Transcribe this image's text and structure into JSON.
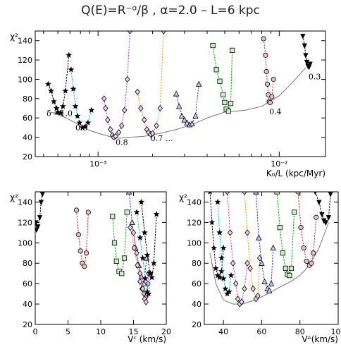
{
  "figure_title": "Q(E)=R⁻ᵅ/β   ,  α=2.0  –  L=6 kpc",
  "colors": {
    "frame": "#000000",
    "envelope": "#777777",
    "d1.0": "#000000",
    "d0.9": "#00c8c8",
    "d0.8": "#d040d0",
    "d0.7": "#ff9a00",
    "d0.6": "#3a3aff",
    "d0.5": "#00b000",
    "d0.4": "#e03030",
    "d0.3": "#000000"
  },
  "chart_data": [
    {
      "id": "top",
      "type": "line",
      "xscale": "log",
      "xlabel": "K₀/L (kpc/Myr)",
      "ylabel": "χ²",
      "xlim": [
        0.00045,
        0.018
      ],
      "ylim": [
        20,
        150
      ],
      "xticks": [
        {
          "v": 0.001,
          "label": "10⁻³"
        },
        {
          "v": 0.01,
          "label": "10⁻²"
        }
      ],
      "yticks": [
        20,
        40,
        60,
        80,
        100,
        120,
        140
      ],
      "annotations": [
        {
          "text": "δ =1.0",
          "x": 0.00052,
          "y": 62
        },
        {
          "text": "0.9",
          "x": 0.00075,
          "y": 47
        },
        {
          "text": "0.8",
          "x": 0.00125,
          "y": 32
        },
        {
          "text": "0.7 …",
          "x": 0.00195,
          "y": 36
        },
        {
          "text": "0.4",
          "x": 0.0088,
          "y": 64
        },
        {
          "text": "0.3",
          "x": 0.0145,
          "y": 100
        }
      ],
      "envelope": {
        "x": [
          0.00055,
          0.0006,
          0.0007,
          0.0008,
          0.0009,
          0.00105,
          0.0012,
          0.0013,
          0.0015,
          0.0018,
          0.0022,
          0.0027,
          0.0033,
          0.004,
          0.005,
          0.0065,
          0.008,
          0.01,
          0.012,
          0.014
        ],
        "y": [
          66,
          64,
          58,
          52,
          47,
          43,
          40,
          39,
          40,
          41,
          44,
          48,
          53,
          60,
          66,
          68,
          72,
          83,
          98,
          112
        ]
      },
      "series": [
        {
          "name": "δ =1.0",
          "key": "d1.0",
          "marker": "star",
          "x": [
            0.00053,
            0.00055,
            0.00057,
            0.00059,
            0.0006,
            0.00062,
            0.00064,
            0.00066,
            0.00069
          ],
          "y": [
            95,
            88,
            77,
            70,
            66,
            65,
            72,
            88,
            125
          ]
        },
        {
          "name": "0.9",
          "key": "d0.9",
          "marker": "star",
          "x": [
            0.00071,
            0.00073,
            0.00075,
            0.00077,
            0.00079,
            0.00082,
            0.00085,
            0.00088,
            0.00092
          ],
          "y": [
            110,
            90,
            72,
            62,
            55,
            50,
            51,
            55,
            68
          ]
        },
        {
          "name": "0.8",
          "key": "d0.8",
          "marker": "diamond",
          "x": [
            0.00108,
            0.0011,
            0.00113,
            0.00117,
            0.0012,
            0.00122,
            0.00125,
            0.0013,
            0.00135,
            0.0014,
            0.00145,
            0.0015
          ],
          "y": [
            80,
            70,
            58,
            48,
            42,
            40,
            41,
            45,
            52,
            68,
            100,
            150
          ]
        },
        {
          "name": "0.7",
          "key": "d0.7",
          "marker": "diamond",
          "x": [
            0.00165,
            0.00172,
            0.0018,
            0.00186,
            0.0019,
            0.00195,
            0.002,
            0.0021,
            0.0022,
            0.0023
          ],
          "y": [
            87,
            70,
            58,
            48,
            45,
            43,
            44,
            52,
            70,
            150
          ]
        },
        {
          "name": "0.6",
          "key": "d0.6",
          "marker": "triangle",
          "x": [
            0.0027,
            0.0028,
            0.0029,
            0.003,
            0.0031,
            0.0032,
            0.0033,
            0.00345,
            0.0036
          ],
          "y": [
            85,
            72,
            62,
            58,
            55,
            53,
            54,
            62,
            95
          ]
        },
        {
          "name": "0.5",
          "key": "d0.5",
          "marker": "square",
          "x": [
            0.0043,
            0.0045,
            0.0047,
            0.0049,
            0.005,
            0.0051,
            0.00525,
            0.0054,
            0.0055
          ],
          "y": [
            135,
            110,
            98,
            84,
            76,
            69,
            67,
            75,
            130
          ]
        },
        {
          "name": "0.4",
          "key": "d0.4",
          "marker": "circle",
          "x": [
            0.0082,
            0.0084,
            0.0085,
            0.0086,
            0.0087,
            0.0088,
            0.0089,
            0.0091,
            0.0093
          ],
          "y": [
            142,
            125,
            108,
            95,
            84,
            77,
            76,
            82,
            100
          ]
        },
        {
          "name": "0.3",
          "key": "d0.3",
          "marker": "tridown",
          "x": [
            0.0135,
            0.0138,
            0.014,
            0.0142,
            0.0144,
            0.0146,
            0.0148
          ],
          "y": [
            145,
            135,
            125,
            118,
            114,
            113,
            116
          ]
        }
      ]
    },
    {
      "id": "bottom-left",
      "type": "line",
      "xscale": "linear",
      "xlabel": "Vᶜ (km/s)",
      "ylabel": "χ²",
      "xlim": [
        0,
        20
      ],
      "ylim": [
        20,
        150
      ],
      "xticks": [
        {
          "v": 0,
          "label": "0"
        },
        {
          "v": 5,
          "label": "5"
        },
        {
          "v": 10,
          "label": "10"
        },
        {
          "v": 15,
          "label": "15"
        },
        {
          "v": 20,
          "label": "20"
        }
      ],
      "yticks": [
        20,
        40,
        60,
        80,
        100,
        120,
        140
      ],
      "series": [
        {
          "key": "d0.3",
          "marker": "tridown",
          "x": [
            0.1,
            0.2,
            0.4,
            0.7,
            0.9,
            1.1
          ],
          "y": [
            120,
            113,
            116,
            125,
            140,
            148
          ]
        },
        {
          "key": "d0.4",
          "marker": "circle",
          "x": [
            6.3,
            6.6,
            6.9,
            7.2,
            7.5,
            7.8,
            8.1
          ],
          "y": [
            132,
            108,
            92,
            80,
            77,
            90,
            130
          ]
        },
        {
          "key": "d0.5",
          "marker": "square",
          "x": [
            11.8,
            12.1,
            12.4,
            12.8,
            13.2,
            13.6,
            14.0
          ],
          "y": [
            126,
            100,
            82,
            72,
            70,
            85,
            130
          ]
        },
        {
          "key": "d0.6",
          "marker": "triangle",
          "x": [
            14.3,
            14.8,
            15.3,
            15.8,
            16.2,
            16.6,
            17.0
          ],
          "y": [
            150,
            120,
            95,
            78,
            67,
            60,
            85
          ]
        },
        {
          "key": "d0.7",
          "marker": "diamond",
          "x": [
            14.5,
            15.1,
            15.6,
            16.0,
            16.3,
            16.6,
            16.9,
            17.2
          ],
          "y": [
            115,
            95,
            78,
            62,
            55,
            50,
            47,
            60
          ]
        },
        {
          "key": "d0.8",
          "marker": "diamond",
          "x": [
            15.0,
            15.5,
            16.0,
            16.4,
            16.7,
            16.9,
            17.1,
            17.3
          ],
          "y": [
            110,
            90,
            70,
            55,
            45,
            42,
            50,
            70
          ]
        },
        {
          "key": "d0.9",
          "marker": "star",
          "x": [
            15.5,
            16.0,
            16.4,
            16.8,
            17.1,
            17.3,
            17.6
          ],
          "y": [
            130,
            105,
            85,
            65,
            52,
            50,
            70
          ]
        },
        {
          "key": "d1.0",
          "marker": "star",
          "x": [
            16.2,
            16.7,
            17.1,
            17.5,
            17.8,
            18.1,
            18.5
          ],
          "y": [
            140,
            110,
            88,
            70,
            66,
            80,
            128
          ]
        }
      ]
    },
    {
      "id": "bottom-right",
      "type": "line",
      "xscale": "linear",
      "xlabel": "Vᴬ(km/s)",
      "ylabel": "χ²",
      "xlim": [
        30,
        100
      ],
      "ylim": [
        20,
        150
      ],
      "xticks": [
        {
          "v": 40,
          "label": "40"
        },
        {
          "v": 60,
          "label": "60"
        },
        {
          "v": 80,
          "label": "80"
        },
        {
          "v": 100,
          "label": "100"
        }
      ],
      "yticks": [
        20,
        40,
        60,
        80,
        100,
        120,
        140
      ],
      "envelope": {
        "x": [
          33,
          36,
          40,
          45,
          50,
          55,
          60,
          65,
          70,
          75,
          80,
          85,
          90,
          95
        ],
        "y": [
          90,
          60,
          44,
          40,
          40,
          43,
          47,
          52,
          57,
          62,
          68,
          78,
          95,
          120
        ]
      },
      "series": [
        {
          "key": "d1.0",
          "marker": "star",
          "x": [
            33,
            34,
            35,
            36,
            37,
            38,
            39,
            40
          ],
          "y": [
            150,
            120,
            95,
            75,
            68,
            66,
            72,
            95
          ]
        },
        {
          "key": "d0.9",
          "marker": "star",
          "x": [
            37,
            38,
            39,
            40,
            41,
            42,
            43,
            44
          ],
          "y": [
            140,
            110,
            85,
            65,
            55,
            50,
            52,
            68
          ]
        },
        {
          "key": "d0.8",
          "marker": "diamond",
          "x": [
            42,
            43.5,
            45,
            46.5,
            47.5,
            48.5,
            49.5,
            51,
            52.5
          ],
          "y": [
            150,
            110,
            80,
            60,
            45,
            40,
            42,
            55,
            80
          ]
        },
        {
          "key": "d0.7",
          "marker": "diamond",
          "x": [
            51,
            52.5,
            54,
            55.5,
            57,
            58,
            59
          ],
          "y": [
            150,
            110,
            75,
            55,
            45,
            48,
            85
          ]
        },
        {
          "key": "d0.6",
          "marker": "triangle",
          "x": [
            57,
            58.5,
            60,
            61.5,
            63,
            64,
            65,
            66
          ],
          "y": [
            150,
            105,
            80,
            62,
            55,
            53,
            60,
            95
          ]
        },
        {
          "key": "d0.5",
          "marker": "square",
          "x": [
            68,
            69.5,
            71,
            72.5,
            73.5,
            74.5,
            75.5,
            77
          ],
          "y": [
            150,
            115,
            90,
            75,
            69,
            68,
            75,
            130
          ]
        },
        {
          "key": "d0.4",
          "marker": "circle",
          "x": [
            79,
            80.5,
            82,
            83.5,
            85,
            86,
            87,
            88.5
          ],
          "y": [
            150,
            115,
            95,
            82,
            78,
            80,
            90,
            125
          ]
        },
        {
          "key": "d0.3",
          "marker": "tridown",
          "x": [
            88,
            90,
            91.5,
            92.5,
            93.5,
            95,
            96
          ],
          "y": [
            150,
            140,
            128,
            122,
            120,
            125,
            148
          ]
        }
      ]
    }
  ]
}
